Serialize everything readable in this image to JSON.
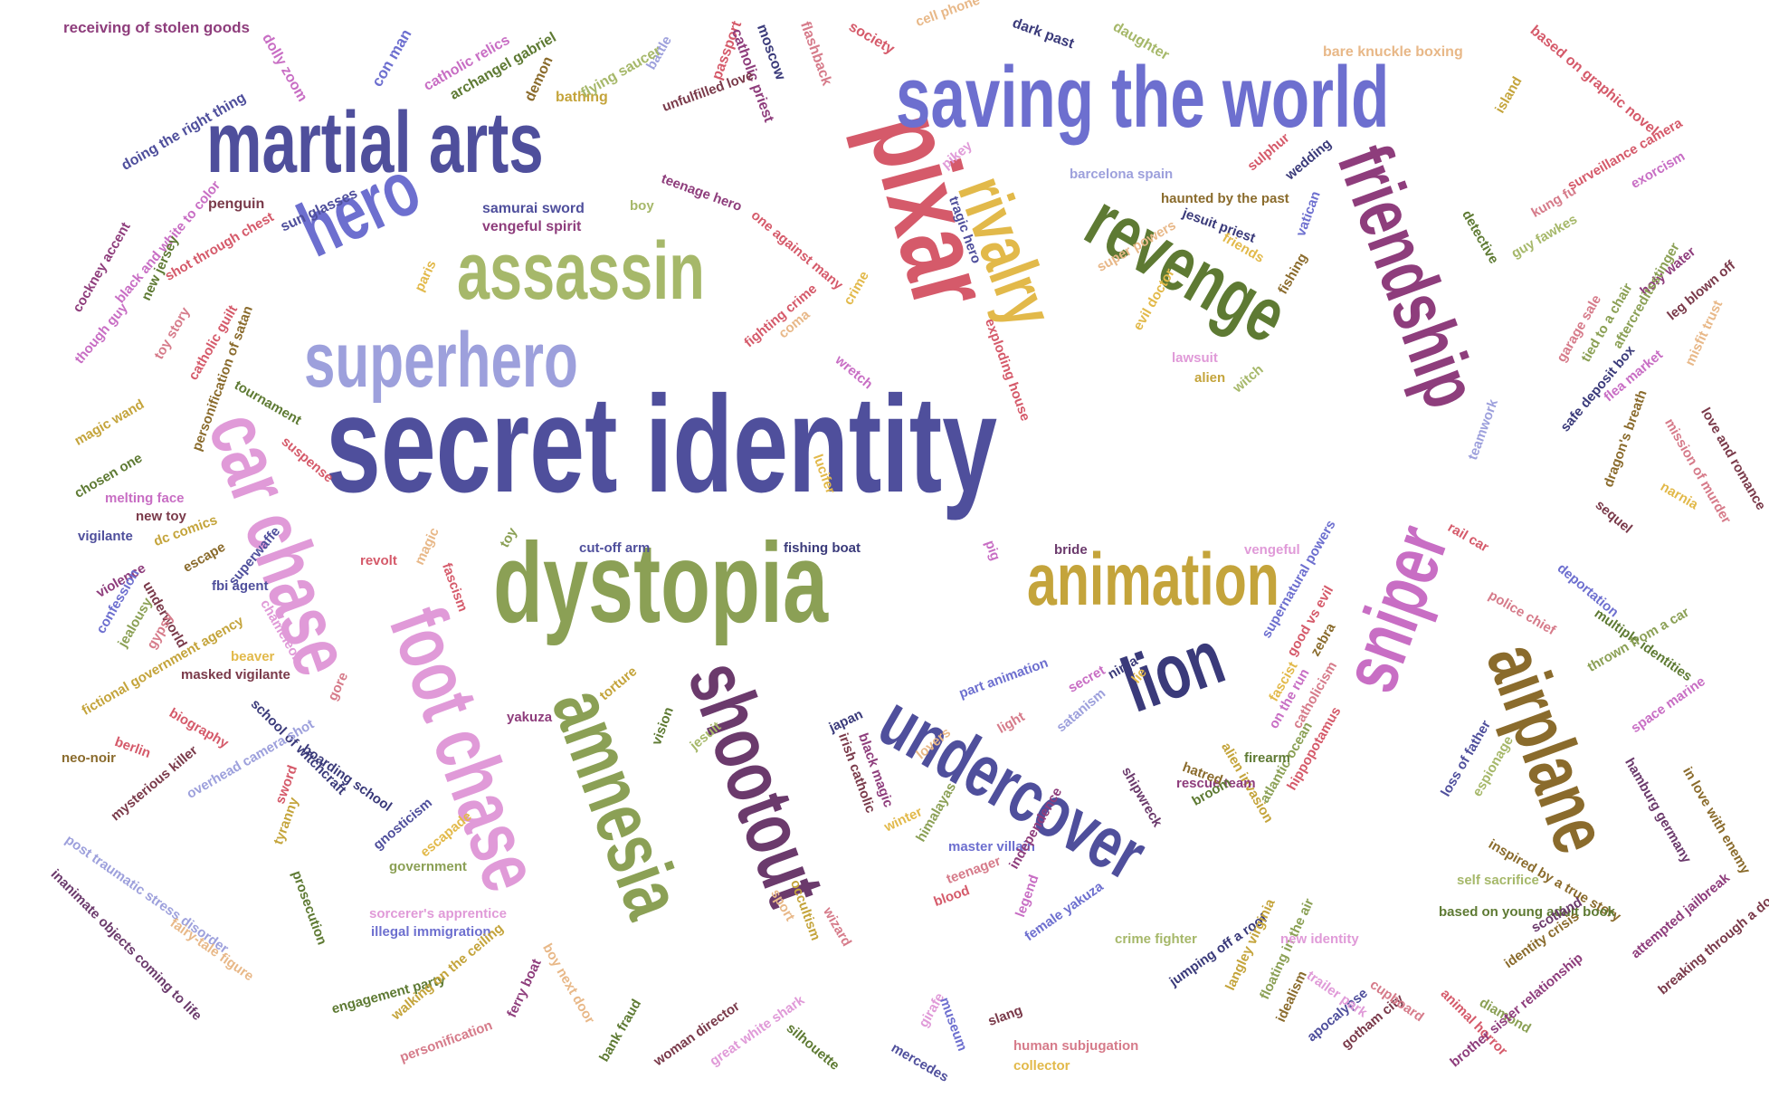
{
  "palette": {
    "navy": "#4f4f9c",
    "periwinkle": "#6d6fcf",
    "lavender": "#9da0dc",
    "sage": "#a6b86a",
    "olive": "#8ba055",
    "forest": "#5e7a33",
    "gold": "#c4a43b",
    "mustard": "#e2b94a",
    "brown": "#8a6b2c",
    "red": "#d55a6a",
    "maroon": "#7a3a4a",
    "plum": "#8e3d7c",
    "purple": "#6b3a6c",
    "pink": "#e09ad8",
    "magenta": "#c86ec4",
    "rose": "#d67b8a",
    "peach": "#e8b888",
    "darkblue": "#3a3a7a",
    "teal": "#5d8a5a"
  },
  "words": [
    "secret identity",
    "dystopia",
    "pixar",
    "saving the world",
    "martial arts",
    "assassin",
    "superhero",
    "hero",
    "revenge",
    "friendship",
    "rivalry",
    "animation",
    "car chase",
    "foot chase",
    "amnesia",
    "shootout",
    "undercover",
    "lion",
    "sniper",
    "airplane",
    "receiving of stolen goods",
    "dolly zoom",
    "con man",
    "catholic relics",
    "archangel gabriel",
    "demon",
    "battle",
    "passport",
    "catholic priest",
    "moscow",
    "flashback",
    "society",
    "cell phone",
    "dark past",
    "daughter",
    "bare knuckle boxing",
    "based on graphic novel",
    "doing the right thing",
    "bathing",
    "flying saucer",
    "unfulfilled love",
    "penguin",
    "sun glasses",
    "samurai sword",
    "vengeful spirit",
    "boy",
    "teenage hero",
    "pikey",
    "barcelona spain",
    "haunted by the past",
    "sulphur",
    "wedding",
    "jesuit priest",
    "friends",
    "vatican",
    "black and white to color",
    "shot through chest",
    "new jersey",
    "cockney accent",
    "catholic guilt",
    "toy story",
    "paris",
    "crime",
    "super powers",
    "evil doctor",
    "fishing",
    "lawsuit",
    "alien",
    "witch",
    "though guy",
    "personification of satan",
    "fighting crime",
    "coma",
    "wretch",
    "tournament",
    "magic wand",
    "chosen one",
    "suspense",
    "melting face",
    "new toy",
    "vigilante",
    "dc comics",
    "escape",
    "violence",
    "superwaffe",
    "underworld",
    "fbi agent",
    "confession",
    "jealousy",
    "gypsy",
    "beaver",
    "masked vigilante",
    "fictional government agency",
    "biography",
    "berlin",
    "neo-noir",
    "school of witchcraft",
    "boarding school",
    "mysterious killer",
    "overhead camera shot",
    "post traumatic stress disorder",
    "inanimate objects coming to life",
    "fairy-tale figure",
    "sorcerer's apprentice",
    "illegal immigration",
    "engagement party",
    "walking on the ceiling",
    "personification",
    "ferry boat",
    "bank fraud",
    "boy next door",
    "woman director",
    "great white shark",
    "silhouette",
    "girafe",
    "mercedes",
    "museum",
    "slang",
    "human subjugation",
    "collector",
    "lucifer",
    "toy",
    "revolt",
    "magic",
    "fascism",
    "cut-off arm",
    "fishing boat",
    "pig",
    "bride",
    "vengeful",
    "chameleon",
    "gore",
    "sword",
    "tyranny",
    "prosecution",
    "government",
    "gnosticism",
    "escapade",
    "torture",
    "yakuza",
    "part animation",
    "secret",
    "ninja",
    "lie",
    "satanism",
    "light",
    "japan",
    "vision",
    "jesuit",
    "irish catholic",
    "black magic",
    "lovers",
    "winter",
    "himalayas",
    "master villain",
    "teenager",
    "blood",
    "sport",
    "wizard",
    "occultism",
    "legend",
    "independence",
    "female yakuza",
    "crime fighter",
    "jumping off a roof",
    "floating in the air",
    "langley virginia",
    "idealism",
    "apocalypse",
    "gotham city",
    "shipwreck",
    "alien invasion",
    "hippopotamus",
    "atlantic ocean",
    "rescue team",
    "broom",
    "hatred",
    "firearm",
    "on the run",
    "catholicism",
    "fascist",
    "supernatural powers",
    "good vs evil",
    "zebra",
    "island",
    "detective",
    "guy fawkes",
    "kung fu",
    "surveillance camera",
    "exorcism",
    "holy water",
    "leg blown off",
    "aftercreditsstinger",
    "tied to a chair",
    "garage sale",
    "flea market",
    "misfit trust",
    "mission of murder",
    "love and romance",
    "safe deposit box",
    "teamwork",
    "dragon's breath",
    "narnia",
    "rail car",
    "sequel",
    "deportation",
    "police chief",
    "multiple identities",
    "thrown from a car",
    "space marine",
    "hamburg germany",
    "in love with enemy",
    "loss of father",
    "espionage",
    "inspired by a true story",
    "self sacrifice",
    "based on young adult book",
    "new identity",
    "scotland",
    "identity crisis",
    "attempted jailbreak",
    "breaking through a door",
    "diamond",
    "animal horror",
    "cupboard",
    "trailer park",
    "brother sister relationship",
    "tragic hero",
    "exploding house",
    "one against many",
    "fantasy world",
    "individual",
    "unfulfillment",
    "flying"
  ]
}
